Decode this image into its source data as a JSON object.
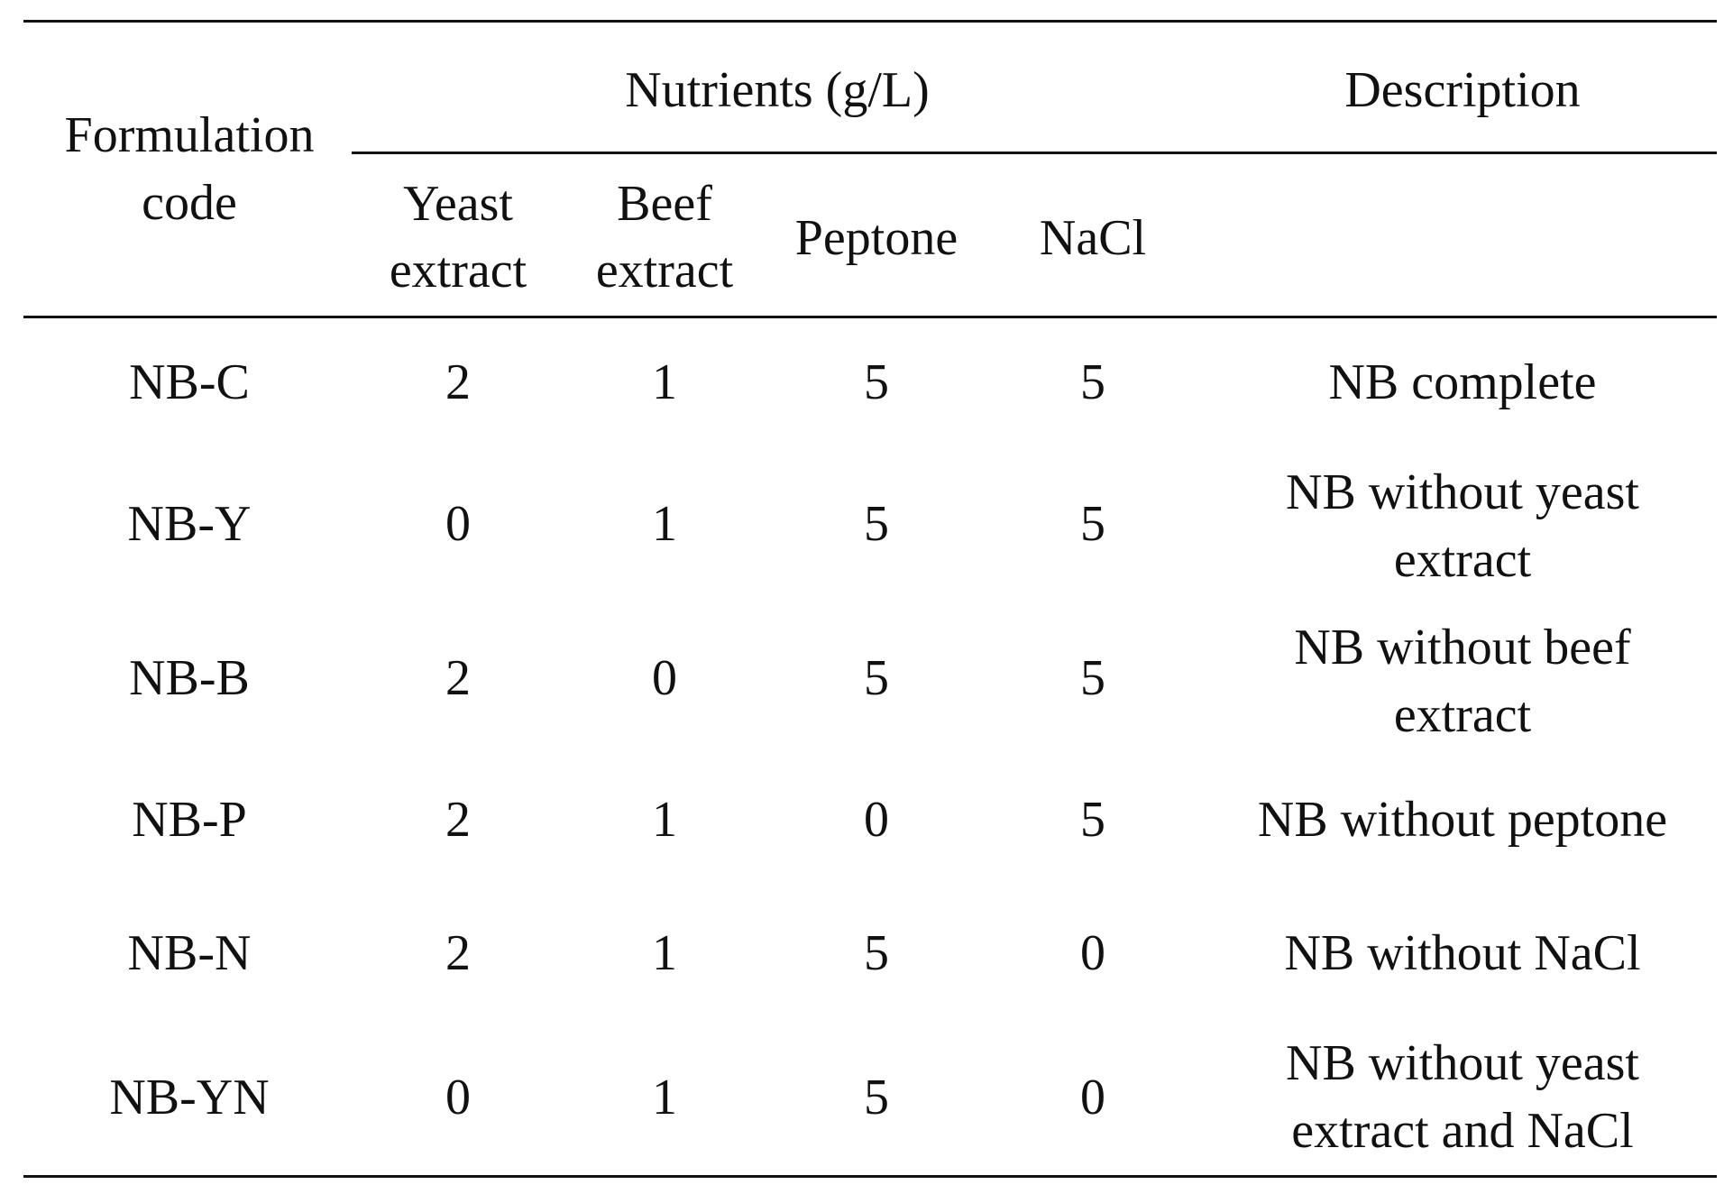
{
  "table": {
    "header": {
      "formulation_code": [
        "Formulation",
        "code"
      ],
      "nutrients_group": "Nutrients (g/L)",
      "description": "Description",
      "columns": [
        [
          "Yeast",
          "extract"
        ],
        [
          "Beef",
          "extract"
        ],
        [
          "Peptone"
        ],
        [
          "NaCl"
        ]
      ]
    },
    "rows": [
      {
        "code": "NB-C",
        "yeast": "2",
        "beef": "1",
        "peptone": "5",
        "nacl": "5",
        "description": [
          "NB complete"
        ]
      },
      {
        "code": "NB-Y",
        "yeast": "0",
        "beef": "1",
        "peptone": "5",
        "nacl": "5",
        "description": [
          "NB without yeast",
          "extract"
        ]
      },
      {
        "code": "NB-B",
        "yeast": "2",
        "beef": "0",
        "peptone": "5",
        "nacl": "5",
        "description": [
          "NB without beef",
          "extract"
        ]
      },
      {
        "code": "NB-P",
        "yeast": "2",
        "beef": "1",
        "peptone": "0",
        "nacl": "5",
        "description": [
          "NB without peptone"
        ]
      },
      {
        "code": "NB-N",
        "yeast": "2",
        "beef": "1",
        "peptone": "5",
        "nacl": "0",
        "description": [
          "NB without NaCl"
        ]
      },
      {
        "code": "NB-YN",
        "yeast": "0",
        "beef": "1",
        "peptone": "5",
        "nacl": "0",
        "description": [
          "NB without yeast",
          "extract and NaCl"
        ]
      }
    ]
  }
}
